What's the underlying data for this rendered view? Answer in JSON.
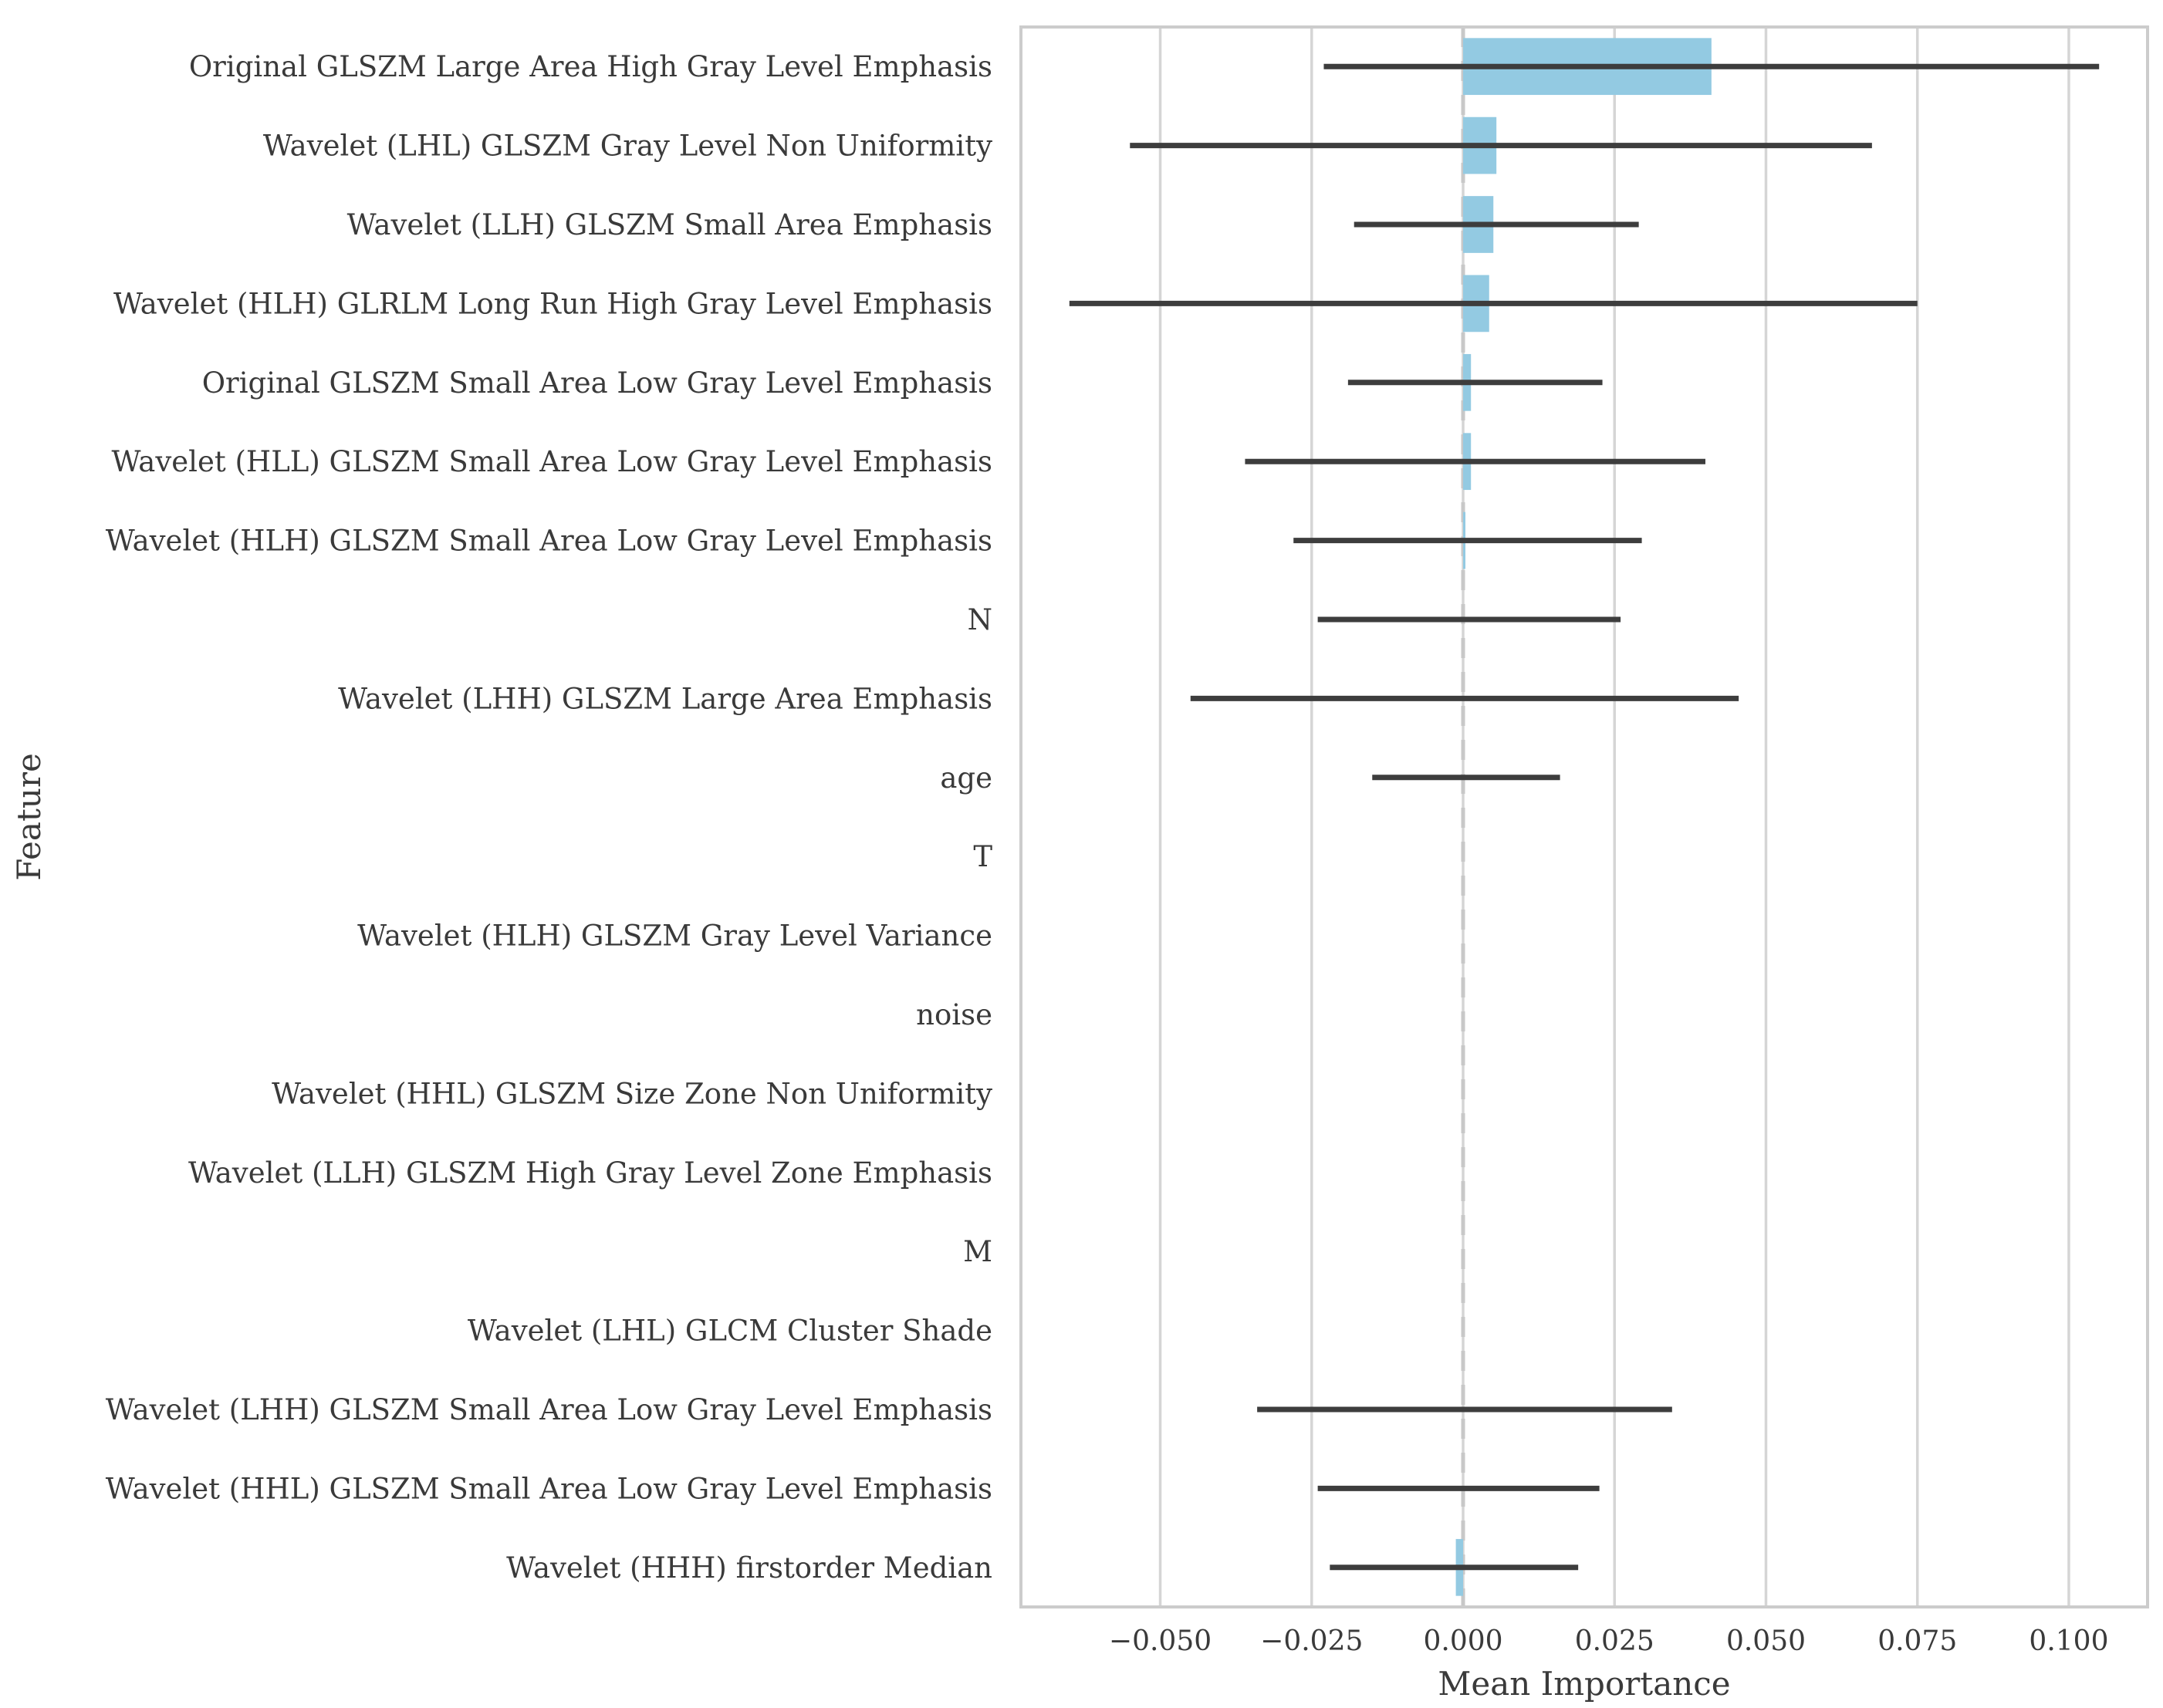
{
  "chart_data": {
    "type": "bar",
    "orientation": "horizontal",
    "title": "",
    "xlabel": "Mean Importance",
    "ylabel": "Feature",
    "xlim": [
      -0.073,
      0.113
    ],
    "xticks": [
      -0.05,
      -0.025,
      0.0,
      0.025,
      0.05,
      0.075,
      0.1
    ],
    "xtick_labels": [
      "−0.050",
      "−0.025",
      "0.000",
      "0.025",
      "0.050",
      "0.075",
      "0.100"
    ],
    "grid": "vertical",
    "reference_line": {
      "x": 0,
      "style": "dashed"
    },
    "categories": [
      "Original GLSZM Large Area High Gray Level Emphasis",
      "Wavelet (LHL) GLSZM Gray Level Non Uniformity",
      "Wavelet (LLH) GLSZM Small Area Emphasis",
      "Wavelet (HLH) GLRLM Long Run High Gray Level Emphasis",
      "Original GLSZM Small Area Low Gray Level Emphasis",
      "Wavelet (HLL) GLSZM Small Area Low Gray Level Emphasis",
      "Wavelet (HLH) GLSZM Small Area Low Gray Level Emphasis",
      "N",
      "Wavelet (LHH) GLSZM Large Area Emphasis",
      "age",
      "T",
      "Wavelet (HLH) GLSZM Gray Level Variance",
      "noise",
      "Wavelet (HHL) GLSZM Size Zone Non Uniformity",
      "Wavelet (LLH) GLSZM High Gray Level Zone Emphasis",
      "M",
      "Wavelet (LHL) GLCM Cluster Shade",
      "Wavelet (LHH) GLSZM Small Area Low Gray Level Emphasis",
      "Wavelet (HHL) GLSZM Small Area Low Gray Level Emphasis",
      "Wavelet (HHH) firstorder Median"
    ],
    "values": [
      0.041,
      0.0055,
      0.005,
      0.0043,
      0.0013,
      0.0013,
      0.0002,
      0.0,
      0.0,
      0.0,
      0.0,
      0.0,
      0.0,
      0.0,
      0.0,
      0.0,
      0.0,
      0.0,
      0.0,
      -0.0012
    ],
    "error_low": [
      -0.023,
      -0.055,
      -0.018,
      -0.065,
      -0.019,
      -0.036,
      -0.028,
      -0.024,
      -0.045,
      -0.015,
      null,
      null,
      null,
      null,
      null,
      null,
      null,
      -0.034,
      -0.024,
      -0.022
    ],
    "error_high": [
      0.105,
      0.0675,
      0.029,
      0.075,
      0.023,
      0.04,
      0.0295,
      0.026,
      0.0455,
      0.016,
      null,
      null,
      null,
      null,
      null,
      null,
      null,
      0.0345,
      0.0225,
      0.019
    ],
    "colors": {
      "bar": "#93cae2",
      "error_bar": "#3d3d3d",
      "grid": "#d5d5d5",
      "frame": "#cccccc",
      "zero_line": "#c8c8c8",
      "text": "#3a3a3a"
    }
  }
}
